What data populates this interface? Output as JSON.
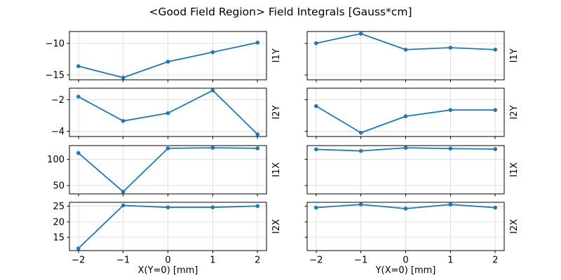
{
  "chart_data": {
    "type": "line",
    "title": "<Good Field Region> Field Integrals [Gauss*cm]",
    "x": [
      -2,
      -1,
      0,
      1,
      2
    ],
    "xticks": [
      -2,
      -1,
      0,
      1,
      2
    ],
    "xlim": [
      -2.2,
      2.2
    ],
    "grid": true,
    "legend": "none",
    "line_color": "#1f77b4",
    "grid_color": "#e0e0e0",
    "axis_color": "#000000",
    "background_color": "#ffffff",
    "columns": [
      {
        "xlabel": "X(Y=0) [mm]"
      },
      {
        "xlabel": "Y(X=0) [mm]"
      }
    ],
    "rows": [
      {
        "ylabel": "I1Y",
        "yticks": [
          -15,
          -10
        ],
        "series": [
          {
            "name": "I1Y vs X(Y=0)",
            "column": 0,
            "values": [
              -13.6,
              -15.4,
              -12.9,
              -11.4,
              -9.9
            ]
          },
          {
            "name": "I1Y vs Y(X=0)",
            "column": 1,
            "values": [
              -10.0,
              -8.5,
              -11.0,
              -10.7,
              -11.0
            ]
          }
        ]
      },
      {
        "ylabel": "I2Y",
        "yticks": [
          -4,
          -2
        ],
        "series": [
          {
            "name": "I2Y vs X(Y=0)",
            "column": 0,
            "values": [
              -1.8,
              -3.35,
              -2.85,
              -1.4,
              -4.2
            ]
          },
          {
            "name": "I2Y vs Y(X=0)",
            "column": 1,
            "values": [
              -2.4,
              -4.1,
              -3.05,
              -2.65,
              -2.65
            ]
          }
        ]
      },
      {
        "ylabel": "I1X",
        "yticks": [
          50,
          100
        ],
        "series": [
          {
            "name": "I1X vs X(Y=0)",
            "column": 0,
            "values": [
              112,
              38,
              121,
              122,
              121
            ]
          },
          {
            "name": "I1X vs Y(X=0)",
            "column": 1,
            "values": [
              119,
              116,
              122,
              120.5,
              119.5
            ]
          }
        ]
      },
      {
        "ylabel": "I2X",
        "yticks": [
          15,
          20,
          25
        ],
        "series": [
          {
            "name": "I2X vs X(Y=0)",
            "column": 0,
            "values": [
              11.5,
              25.2,
              24.6,
              24.6,
              25.0
            ]
          },
          {
            "name": "I2X vs Y(X=0)",
            "column": 1,
            "values": [
              24.5,
              25.5,
              24.2,
              25.5,
              24.5
            ]
          }
        ]
      }
    ]
  }
}
